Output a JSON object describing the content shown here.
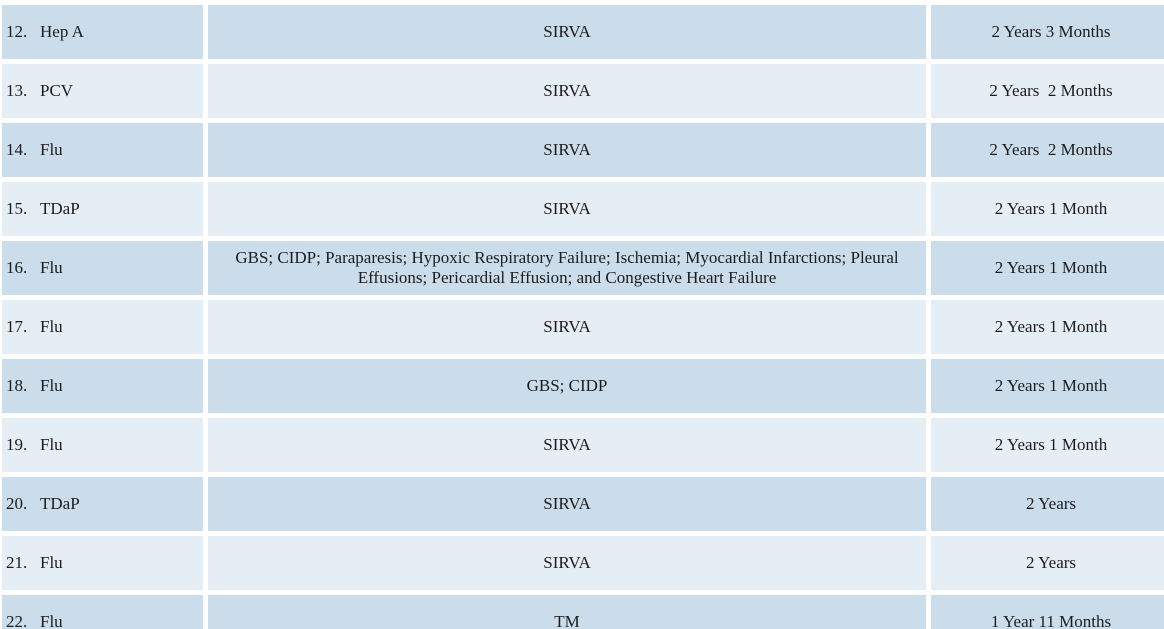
{
  "table": {
    "colors": {
      "row_dark": "#cbdcea",
      "row_light": "#e6eef5",
      "background": "#ffffff",
      "text": "#1c1c1c"
    },
    "rows": [
      {
        "num": "12.",
        "vaccine": "Hep A",
        "injury": "SIRVA",
        "duration": "2 Years 3 Months"
      },
      {
        "num": "13.",
        "vaccine": "PCV",
        "injury": "SIRVA",
        "duration": "2 Years  2 Months"
      },
      {
        "num": "14.",
        "vaccine": "Flu",
        "injury": "SIRVA",
        "duration": "2 Years  2 Months"
      },
      {
        "num": "15.",
        "vaccine": "TDaP",
        "injury": "SIRVA",
        "duration": "2 Years 1 Month"
      },
      {
        "num": "16.",
        "vaccine": "Flu",
        "injury": "GBS; CIDP; Paraparesis; Hypoxic Respiratory Failure; Ischemia; Myocardial Infarctions; Pleural Effusions; Pericardial Effusion; and Congestive Heart Failure",
        "duration": "2 Years 1 Month"
      },
      {
        "num": "17.",
        "vaccine": "Flu",
        "injury": "SIRVA",
        "duration": "2 Years 1 Month"
      },
      {
        "num": "18.",
        "vaccine": "Flu",
        "injury": "GBS; CIDP",
        "duration": "2 Years 1 Month"
      },
      {
        "num": "19.",
        "vaccine": "Flu",
        "injury": "SIRVA",
        "duration": "2 Years 1 Month"
      },
      {
        "num": "20.",
        "vaccine": "TDaP",
        "injury": "SIRVA",
        "duration": "2 Years"
      },
      {
        "num": "21.",
        "vaccine": "Flu",
        "injury": "SIRVA",
        "duration": "2 Years"
      },
      {
        "num": "22.",
        "vaccine": "Flu",
        "injury": "TM",
        "duration": "1 Year 11 Months"
      }
    ]
  }
}
